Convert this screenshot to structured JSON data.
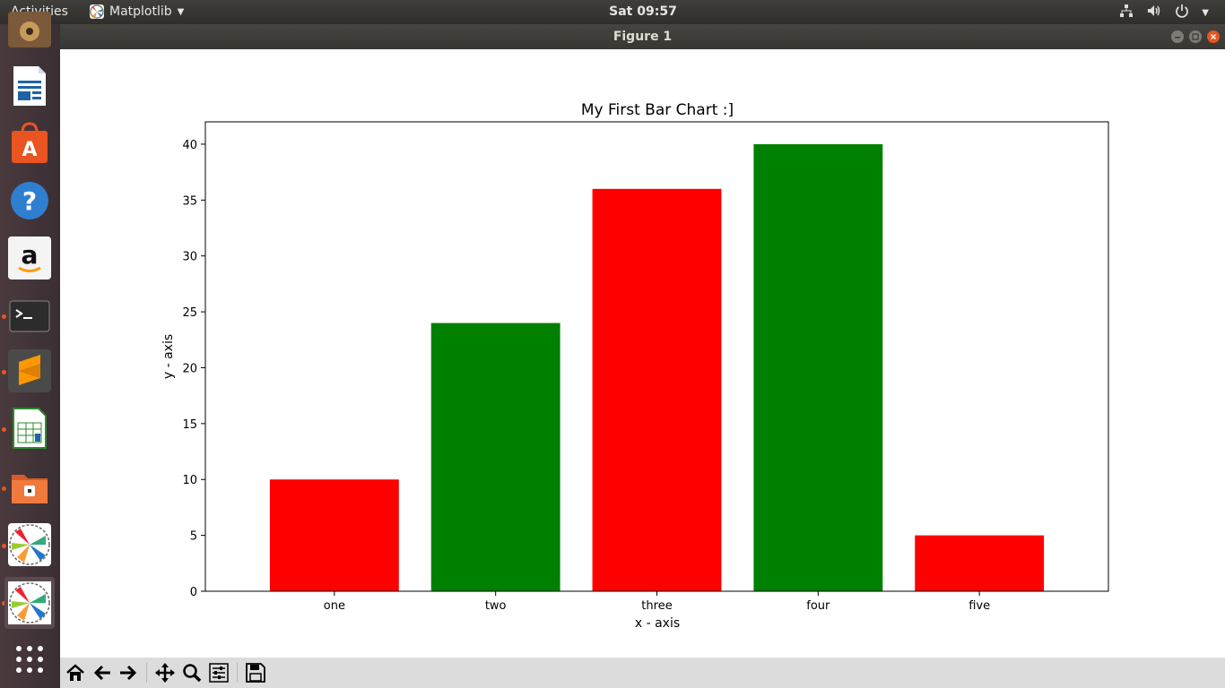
{
  "topbar": {
    "activities": "Activities",
    "app_name": "Matplotlib",
    "clock": "Sat 09:57"
  },
  "window": {
    "title": "Figure 1"
  },
  "dock": {
    "items": [
      "music-icon",
      "writer-icon",
      "software-center-icon",
      "help-icon",
      "amazon-icon",
      "terminal-icon",
      "sublime-text-icon",
      "calc-icon",
      "files-icon",
      "matplotlib-icon",
      "matplotlib-icon",
      "show-apps-icon"
    ]
  },
  "toolbar": {
    "buttons": [
      "home-icon",
      "back-icon",
      "forward-icon",
      "pan-icon",
      "zoom-icon",
      "configure-subplots-icon",
      "save-icon"
    ]
  },
  "chart_data": {
    "type": "bar",
    "title": "My First Bar Chart :]",
    "xlabel": "x - axis",
    "ylabel": "y - axis",
    "categories": [
      "one",
      "two",
      "three",
      "four",
      "five"
    ],
    "values": [
      10,
      24,
      36,
      40,
      5
    ],
    "colors": [
      "#ff0000",
      "#008000",
      "#ff0000",
      "#008000",
      "#ff0000"
    ],
    "ylim": [
      0,
      42
    ],
    "yticks": [
      0,
      5,
      10,
      15,
      20,
      25,
      30,
      35,
      40
    ],
    "grid": false
  }
}
